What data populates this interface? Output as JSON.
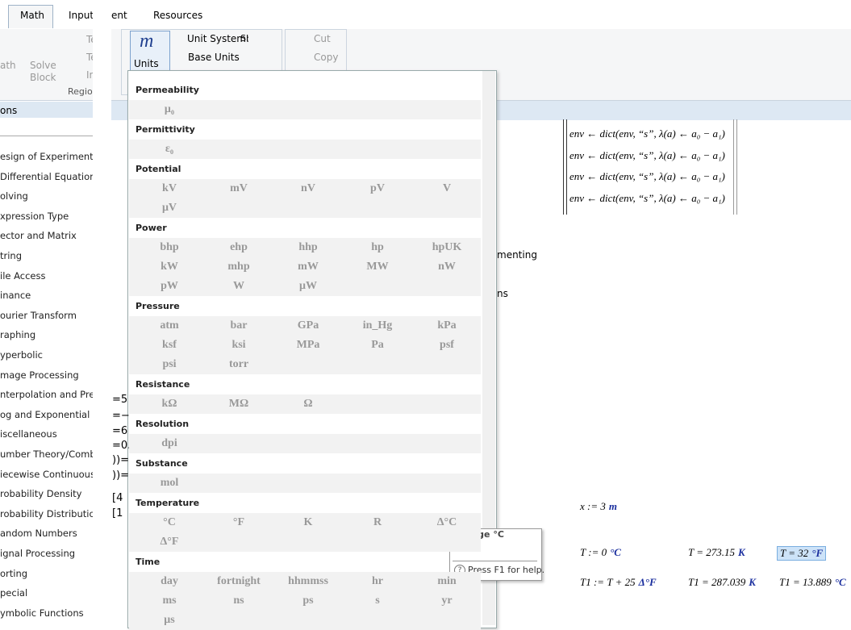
{
  "tabs": [
    "Math",
    "Input/",
    "ent",
    "Resources"
  ],
  "ribbon": {
    "left_cut": "ath",
    "solve": "Solve",
    "block": "Block",
    "te1": "Te",
    "te2": "Te",
    "in": "In",
    "regions": "Region",
    "units": "Units",
    "unit_system": "Unit System:",
    "si": "SI",
    "base_units": "Base Units",
    "cut": "Cut",
    "copy": "Copy"
  },
  "sidebar": {
    "header": "ons",
    "items": [
      "esign of Experiments",
      "Differential Equations",
      "olving",
      "xpression Type",
      "ector and Matrix",
      "tring",
      "ile Access",
      "inance",
      "ourier Transform",
      "raphing",
      "yperbolic",
      "mage Processing",
      "nterpolation and Predi",
      "og and Exponential",
      "iscellaneous",
      "umber Theory/Combi",
      "iecewise Continuous",
      "robability Density",
      "robability Distribution",
      "andom Numbers",
      "ignal Processing",
      "orting",
      "pecial",
      "ymbolic Functions"
    ]
  },
  "fragments": [
    "=5",
    "=−",
    "=6",
    "=0.",
    "))=",
    "))=",
    "[4",
    "[1"
  ],
  "units_menu": {
    "groups": [
      {
        "name": "Permeability",
        "units": [
          "μ₀"
        ]
      },
      {
        "name": "Permittivity",
        "units": [
          "ε₀"
        ]
      },
      {
        "name": "Potential",
        "units": [
          "kV",
          "mV",
          "nV",
          "pV",
          "V",
          "μV"
        ]
      },
      {
        "name": "Power",
        "units": [
          "bhp",
          "ehp",
          "hhp",
          "hp",
          "hpUK",
          "kW",
          "mhp",
          "mW",
          "MW",
          "nW",
          "pW",
          "W",
          "μW"
        ]
      },
      {
        "name": "Pressure",
        "units": [
          "atm",
          "bar",
          "GPa",
          "in_Hg",
          "kPa",
          "ksf",
          "ksi",
          "MPa",
          "Pa",
          "psf",
          "psi",
          "torr"
        ]
      },
      {
        "name": "Resistance",
        "units": [
          "kΩ",
          "MΩ",
          "Ω"
        ]
      },
      {
        "name": "Resolution",
        "units": [
          "dpi"
        ]
      },
      {
        "name": "Substance",
        "units": [
          "mol"
        ]
      },
      {
        "name": "Temperature",
        "units": [
          "°C",
          "°F",
          "K",
          "R",
          "Δ°C",
          "Δ°F"
        ]
      },
      {
        "name": "Time",
        "units": [
          "day",
          "fortnight",
          "hhmmss",
          "hr",
          "min",
          "ms",
          "ns",
          "ps",
          "s",
          "yr",
          "μs"
        ]
      }
    ]
  },
  "tooltip": {
    "title": "Change °C",
    "help": "Press F1 for help."
  },
  "worksheet": {
    "env_lines": [
      "env ← dict(env, “s”, λ(a) ← a₀ − a₁)",
      "env ← dict(env, “s”, λ(a) ← a₀ − a₁)",
      "env ← dict(env, “s”, λ(a) ← a₀ − a₁)",
      "env ← dict(env, “s”, λ(a) ← a₀ − a₁)"
    ],
    "texts": [
      "menting",
      "ns"
    ],
    "math": [
      {
        "expr": "x := 3",
        "unit": "m"
      },
      {
        "expr": "T := 0",
        "unit": "°C"
      },
      {
        "expr": "T = 273.15",
        "unit": "K"
      },
      {
        "expr": "T = 32",
        "unit": "°F"
      },
      {
        "expr": "T1 := T + 25",
        "unit": "Δ°F"
      },
      {
        "expr": "T1 = 287.039",
        "unit": "K"
      },
      {
        "expr": "T1 = 13.889",
        "unit": "°C"
      }
    ]
  }
}
